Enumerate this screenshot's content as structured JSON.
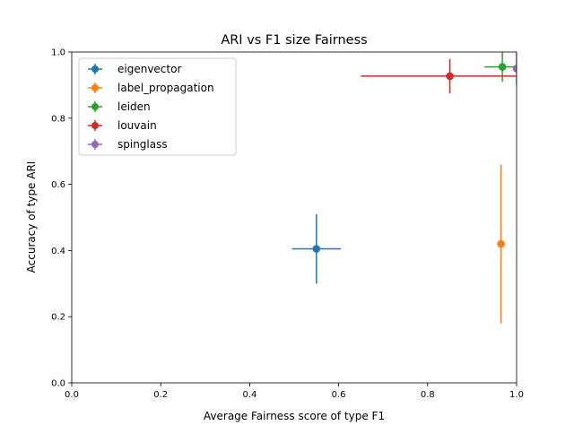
{
  "chart_data": {
    "type": "scatter",
    "title": "ARI vs F1 size Fairness",
    "xlabel": "Average Fairness score of type F1",
    "ylabel": "Accuracy of type ARI",
    "xlim": [
      0.0,
      1.0
    ],
    "ylim": [
      0.0,
      1.0
    ],
    "xticks": [
      0.0,
      0.2,
      0.4,
      0.6,
      0.8,
      1.0
    ],
    "yticks": [
      0.0,
      0.2,
      0.4,
      0.6,
      0.8,
      1.0
    ],
    "xtick_labels": [
      "0.0",
      "0.2",
      "0.4",
      "0.6",
      "0.8",
      "1.0"
    ],
    "ytick_labels": [
      "0.0",
      "0.2",
      "0.4",
      "0.6",
      "0.8",
      "1.0"
    ],
    "grid": false,
    "legend_position": "upper-left",
    "series": [
      {
        "name": "eigenvector",
        "color": "#1f77b4",
        "x": 0.55,
        "y": 0.405,
        "xerr": 0.055,
        "yerr": 0.105
      },
      {
        "name": "label_propagation",
        "color": "#ff7f0e",
        "x": 0.965,
        "y": 0.42,
        "xerr": 0.005,
        "yerr": 0.24
      },
      {
        "name": "leiden",
        "color": "#2ca02c",
        "x": 0.968,
        "y": 0.955,
        "xerr": 0.04,
        "yerr": 0.045
      },
      {
        "name": "louvain",
        "color": "#d62728",
        "x": 0.85,
        "y": 0.927,
        "xerr": 0.2,
        "yerr": 0.052
      },
      {
        "name": "spinglass",
        "color": "#9467bd",
        "x": 1.0,
        "y": 0.95,
        "xerr": 0.0,
        "yerr": 0.05
      }
    ]
  }
}
